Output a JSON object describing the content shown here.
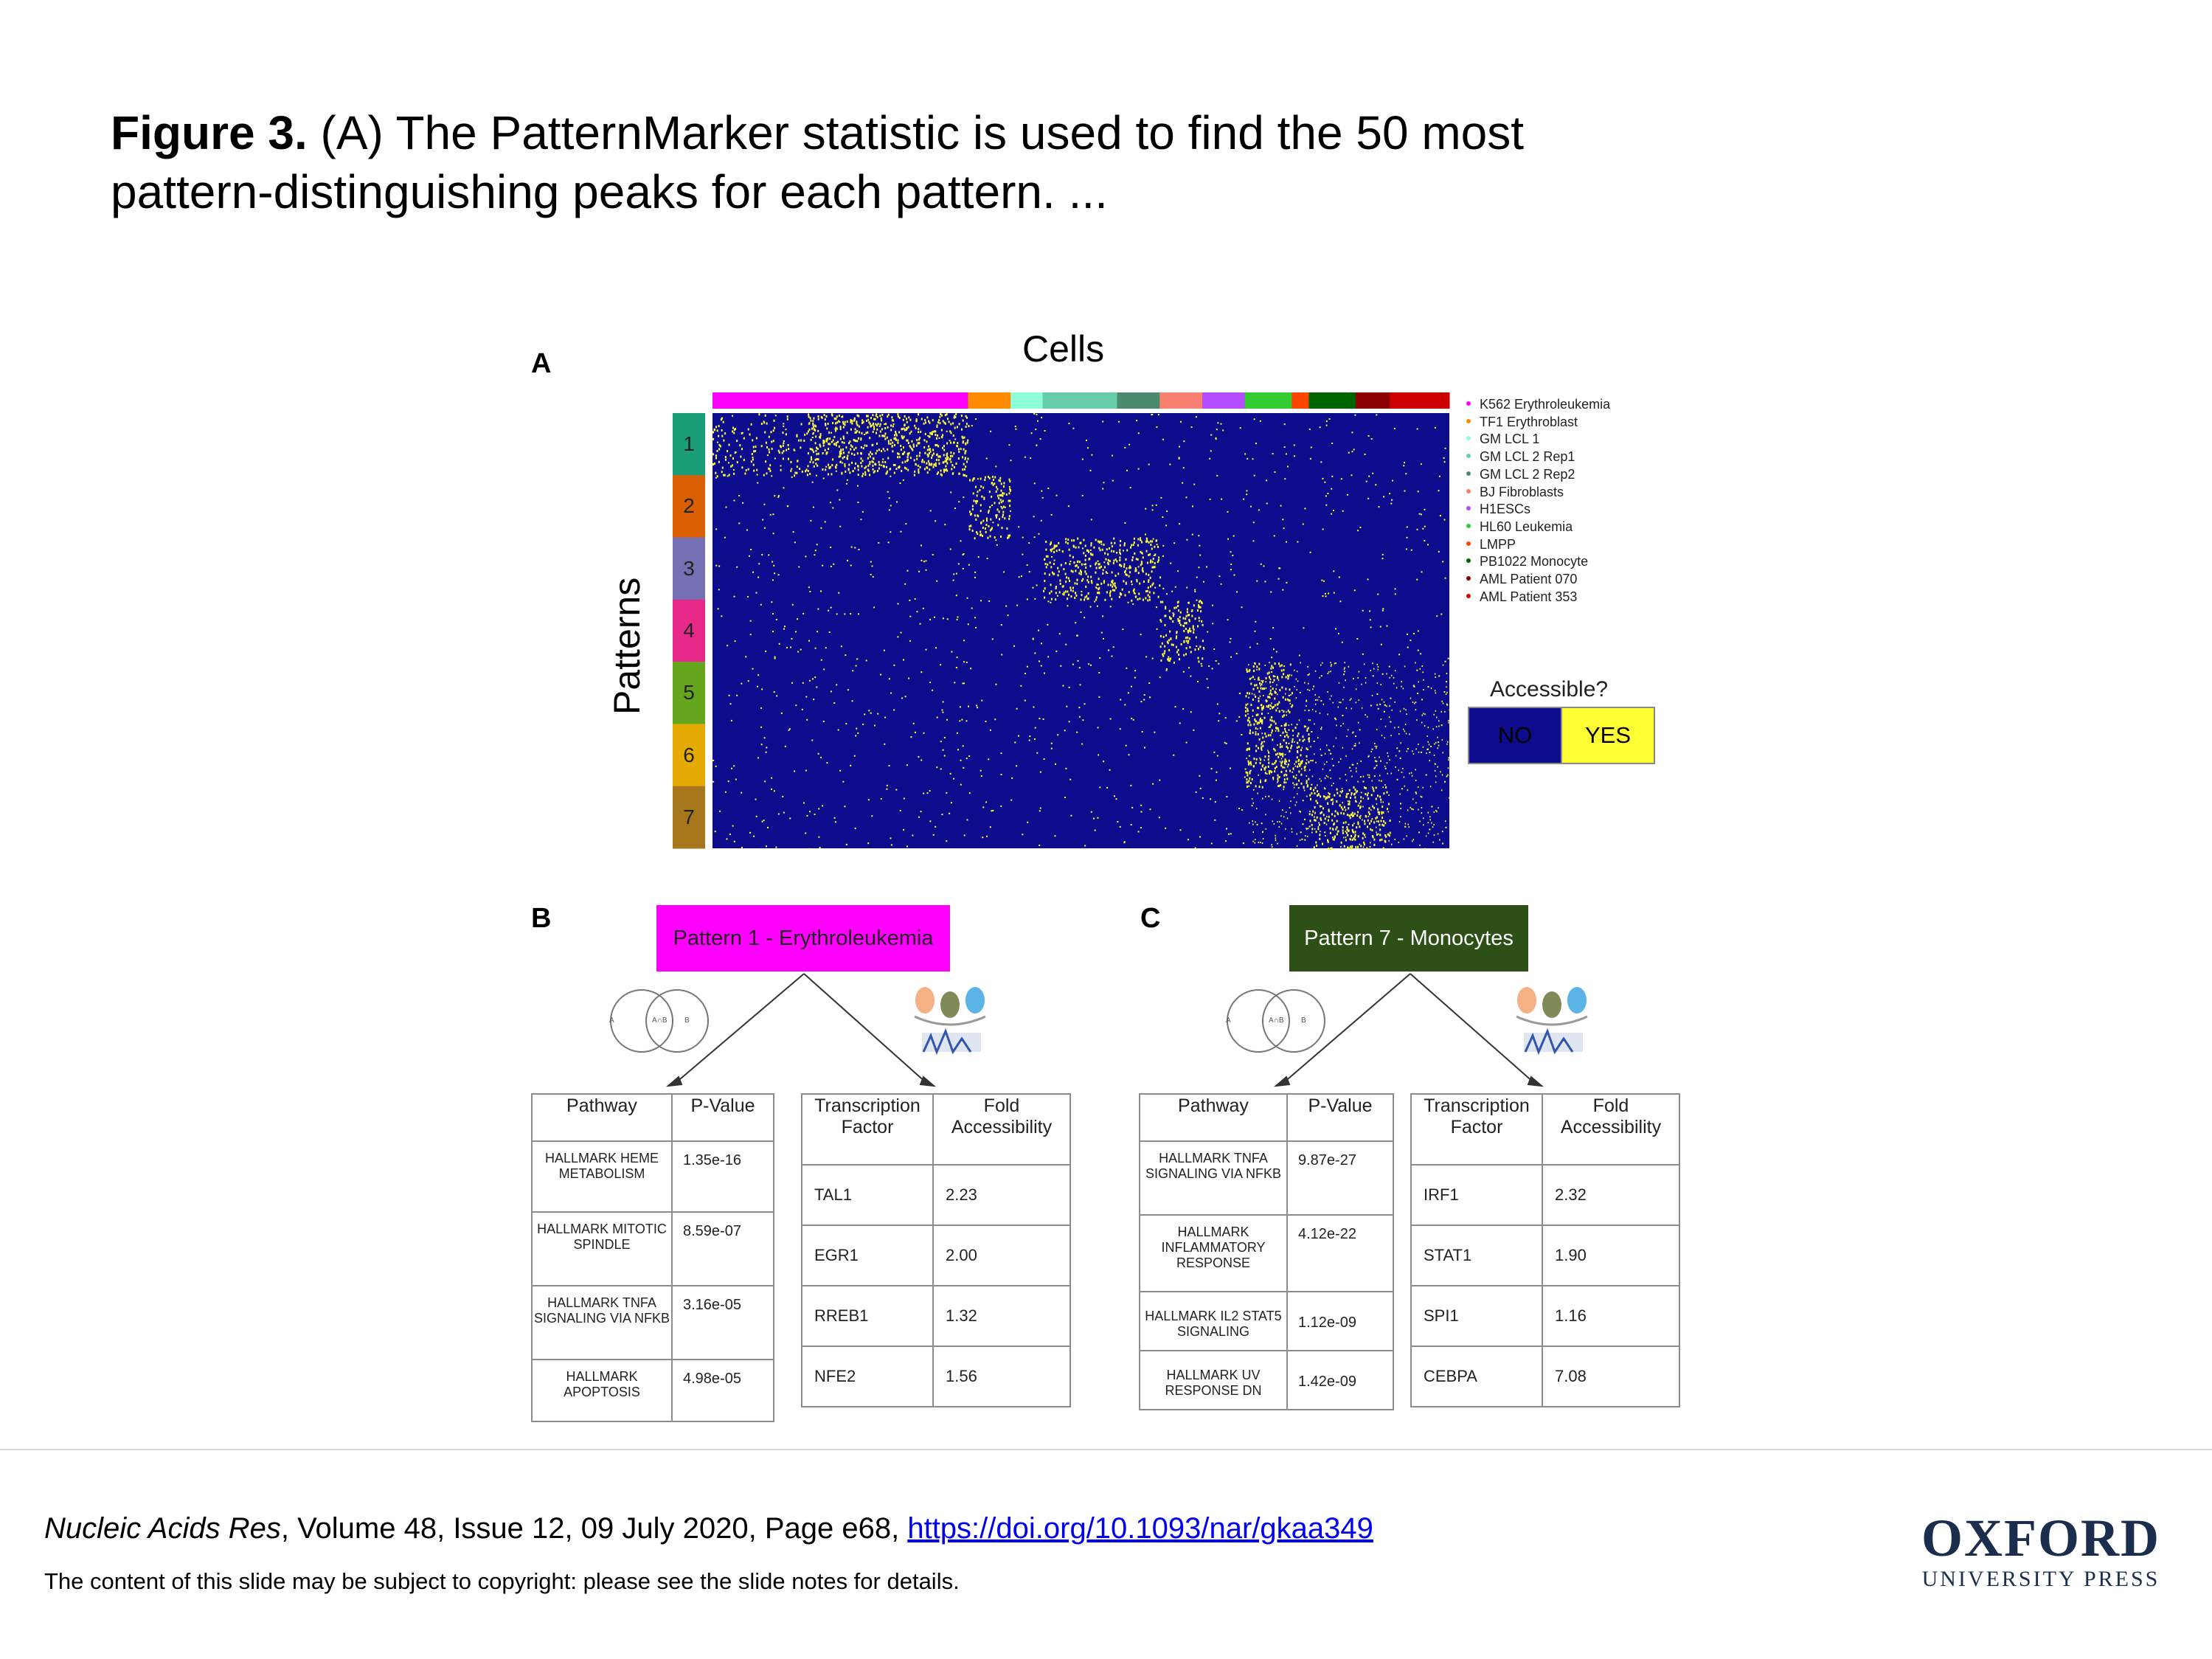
{
  "caption": {
    "label": "Figure 3.",
    "text_line1": " (A) The PatternMarker statistic is used to find the 50 most",
    "text_line2": "pattern-distinguishing peaks for each pattern. ..."
  },
  "panel_a": {
    "letter": "A",
    "cells_title": "Cells",
    "patterns_title": "Patterns",
    "cell_groups": [
      {
        "name": "K562 Erythroleukemia",
        "color": "#ff00ff",
        "weight": 6
      },
      {
        "name": "TF1 Erythroblast",
        "color": "#ff8c00",
        "weight": 1
      },
      {
        "name": "GM LCL 1",
        "color": "#8effd9",
        "weight": 0.75
      },
      {
        "name": "GM LCL 2 Rep1",
        "color": "#66ccaa",
        "weight": 1.75
      },
      {
        "name": "GM LCL 2 Rep2",
        "color": "#4a8b6e",
        "weight": 1
      },
      {
        "name": "BJ Fibroblasts",
        "color": "#fa8072",
        "weight": 1
      },
      {
        "name": "H1ESCs",
        "color": "#b44dff",
        "weight": 1
      },
      {
        "name": "HL60 Leukemia",
        "color": "#33cc33",
        "weight": 1.1
      },
      {
        "name": "LMPP",
        "color": "#ff4500",
        "weight": 0.4
      },
      {
        "name": "PB1022 Monocyte",
        "color": "#006400",
        "weight": 1.1
      },
      {
        "name": "AML Patient 070",
        "color": "#8b0000",
        "weight": 0.8
      },
      {
        "name": "AML Patient 353",
        "color": "#cc0000",
        "weight": 1.4
      }
    ],
    "legend_extra_color": "#ff4500",
    "patterns": [
      {
        "label": "1",
        "color": "#1b9e77"
      },
      {
        "label": "2",
        "color": "#d95f02"
      },
      {
        "label": "3",
        "color": "#7570b3"
      },
      {
        "label": "4",
        "color": "#e7298a"
      },
      {
        "label": "5",
        "color": "#66a61e"
      },
      {
        "label": "6",
        "color": "#e6ab02"
      },
      {
        "label": "7",
        "color": "#a6761d"
      }
    ],
    "accessible": {
      "title": "Accessible?",
      "no_label": "NO",
      "yes_label": "YES",
      "no_color": "#0c0c8c",
      "yes_color": "#ffff33"
    }
  },
  "panel_b": {
    "letter": "B",
    "pattern_box": {
      "label": "Pattern 1 - Erythroleukemia",
      "color": "#ff00ff"
    },
    "pathway_table": {
      "headers": [
        "Pathway",
        "P-Value"
      ],
      "rows": [
        {
          "pathway": "HALLMARK HEME METABOLISM",
          "p": "1.35e-16"
        },
        {
          "pathway": "HALLMARK MITOTIC SPINDLE",
          "p": "8.59e-07"
        },
        {
          "pathway": "HALLMARK TNFA SIGNALING VIA NFKB",
          "p": "3.16e-05"
        },
        {
          "pathway": "HALLMARK APOPTOSIS",
          "p": "4.98e-05"
        }
      ]
    },
    "tf_table": {
      "headers": [
        "Transcription Factor",
        "Fold Accessibility"
      ],
      "rows": [
        {
          "tf": "TAL1",
          "fold": "2.23"
        },
        {
          "tf": "EGR1",
          "fold": "2.00"
        },
        {
          "tf": "RREB1",
          "fold": "1.32"
        },
        {
          "tf": "NFE2",
          "fold": "1.56"
        }
      ]
    }
  },
  "panel_c": {
    "letter": "C",
    "pattern_box": {
      "label": "Pattern 7 - Monocytes",
      "color": "#2d5016"
    },
    "pathway_table": {
      "headers": [
        "Pathway",
        "P-Value"
      ],
      "rows": [
        {
          "pathway": "HALLMARK TNFA SIGNALING VIA NFKB",
          "p": "9.87e-27"
        },
        {
          "pathway": "HALLMARK INFLAMMATORY RESPONSE",
          "p": "4.12e-22"
        },
        {
          "pathway": "HALLMARK IL2 STAT5 SIGNALING",
          "p": "1.12e-09"
        },
        {
          "pathway": "HALLMARK UV RESPONSE DN",
          "p": "1.42e-09"
        }
      ]
    },
    "tf_table": {
      "headers": [
        "Transcription Factor",
        "Fold Accessibility"
      ],
      "rows": [
        {
          "tf": "IRF1",
          "fold": "2.32"
        },
        {
          "tf": "STAT1",
          "fold": "1.90"
        },
        {
          "tf": "SPI1",
          "fold": "1.16"
        },
        {
          "tf": "CEBPA",
          "fold": "7.08"
        }
      ]
    }
  },
  "venn_labels": {
    "a": "A",
    "ab": "A∩B",
    "b": "B"
  },
  "footer": {
    "journal": "Nucleic Acids Res",
    "details": ", Volume 48, Issue 12, 09 July 2020, Page e68, ",
    "doi": "https://doi.org/10.1093/nar/gkaa349",
    "copyright": "The content of this slide may be subject to copyright: please see the slide notes for details.",
    "logo_line1": "OXFORD",
    "logo_line2": "UNIVERSITY PRESS"
  }
}
